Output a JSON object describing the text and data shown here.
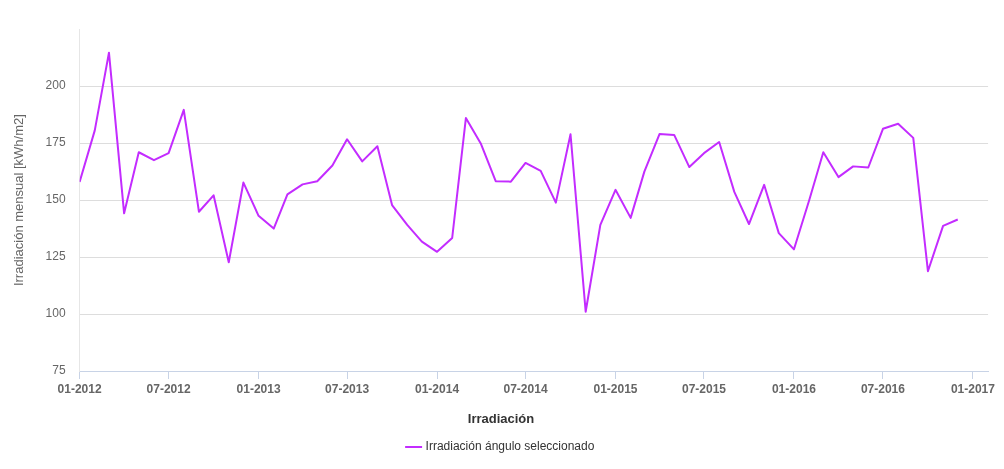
{
  "chart_data": {
    "type": "line",
    "ylabel": "Irradiación mensual [kWh/m2]",
    "legend_title": "Irradiación",
    "legend": "bottom",
    "grid": "y",
    "marker": "none",
    "line_style": "solid",
    "x": [
      "2012-01",
      "2012-02",
      "2012-03",
      "2012-04",
      "2012-05",
      "2012-06",
      "2012-07",
      "2012-08",
      "2012-09",
      "2012-10",
      "2012-11",
      "2012-12",
      "2013-01",
      "2013-02",
      "2013-03",
      "2013-04",
      "2013-05",
      "2013-06",
      "2013-07",
      "2013-08",
      "2013-09",
      "2013-10",
      "2013-11",
      "2013-12",
      "2014-01",
      "2014-02",
      "2014-03",
      "2014-04",
      "2014-05",
      "2014-06",
      "2014-07",
      "2014-08",
      "2014-09",
      "2014-10",
      "2014-11",
      "2014-12",
      "2015-01",
      "2015-02",
      "2015-03",
      "2015-04",
      "2015-05",
      "2015-06",
      "2015-07",
      "2015-08",
      "2015-09",
      "2015-10",
      "2015-11",
      "2015-12",
      "2016-01",
      "2016-02",
      "2016-03",
      "2016-04",
      "2016-05",
      "2016-06",
      "2016-07",
      "2016-08",
      "2016-09",
      "2016-10",
      "2016-11",
      "2016-12"
    ],
    "series": [
      {
        "name": "Irradiación ángulo seleccionado",
        "color": "#c32cff",
        "values": [
          158,
          180.6,
          214.7,
          144.2,
          171,
          167.5,
          170.6,
          189.6,
          144.9,
          152.1,
          122.7,
          157.7,
          143.1,
          137.5,
          152.5,
          156.9,
          158.3,
          165.2,
          176.7,
          167,
          173.6,
          147.8,
          139.1,
          131.8,
          127.3,
          133.4,
          186,
          174.6,
          158.3,
          158.1,
          166.3,
          162.8,
          148.9,
          178.9,
          101,
          139.1,
          154.5,
          142.2,
          162.5,
          179,
          178.6,
          164.5,
          170.6,
          175.5,
          153.6,
          139.5,
          156.7,
          135.5,
          128.4,
          149.8,
          171,
          160.1,
          164.8,
          164.3,
          181.3,
          183.5,
          177.3,
          118.8,
          138.7,
          141.5
        ]
      }
    ],
    "xlim": [
      "2012-01",
      "2017-02"
    ],
    "xticks": [
      {
        "value": "2012-01",
        "label": "01-2012"
      },
      {
        "value": "2012-07",
        "label": "07-2012"
      },
      {
        "value": "2013-01",
        "label": "01-2013"
      },
      {
        "value": "2013-07",
        "label": "07-2013"
      },
      {
        "value": "2014-01",
        "label": "01-2014"
      },
      {
        "value": "2014-07",
        "label": "07-2014"
      },
      {
        "value": "2015-01",
        "label": "01-2015"
      },
      {
        "value": "2015-07",
        "label": "07-2015"
      },
      {
        "value": "2016-01",
        "label": "01-2016"
      },
      {
        "value": "2016-07",
        "label": "07-2016"
      },
      {
        "value": "2017-01",
        "label": "01-2017"
      }
    ],
    "ylim": [
      75,
      225
    ],
    "yticks": [
      75,
      100,
      125,
      150,
      175,
      200
    ]
  }
}
